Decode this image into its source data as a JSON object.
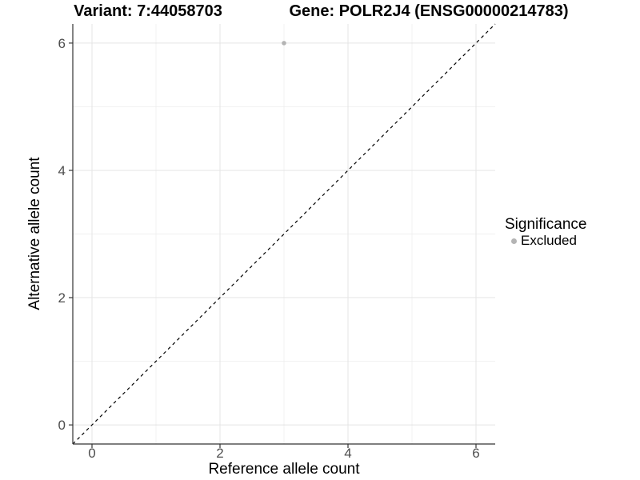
{
  "chart_data": {
    "type": "scatter",
    "title_left": "Variant: 7:44058703",
    "title_right": "Gene: POLR2J4 (ENSG00000214783)",
    "xlabel": "Reference allele count",
    "ylabel": "Alternative allele count",
    "xlim": [
      -0.3,
      6.3
    ],
    "ylim": [
      -0.3,
      6.3
    ],
    "x_major_ticks": [
      0,
      2,
      4,
      6
    ],
    "y_major_ticks": [
      0,
      2,
      4,
      6
    ],
    "x_minor_gridlines": [
      1,
      3,
      5
    ],
    "y_minor_gridlines": [
      1,
      3,
      5
    ],
    "grid": true,
    "series": [
      {
        "name": "Excluded",
        "color": "#b4b4b4",
        "points": [
          {
            "x": 3,
            "y": 6
          }
        ]
      }
    ],
    "reference_line": {
      "type": "identity y=x",
      "style": "dashed",
      "color": "#000000"
    },
    "legend": {
      "title": "Significance",
      "position": "right",
      "items": [
        {
          "label": "Excluded",
          "color": "#b4b4b4"
        }
      ]
    }
  },
  "colors": {
    "background": "#ffffff",
    "grid_major": "#e4e4e4",
    "grid_minor": "#f0f0f0",
    "axis": "#333333",
    "tick_text": "#4d4d4d",
    "title_text": "#000000"
  }
}
